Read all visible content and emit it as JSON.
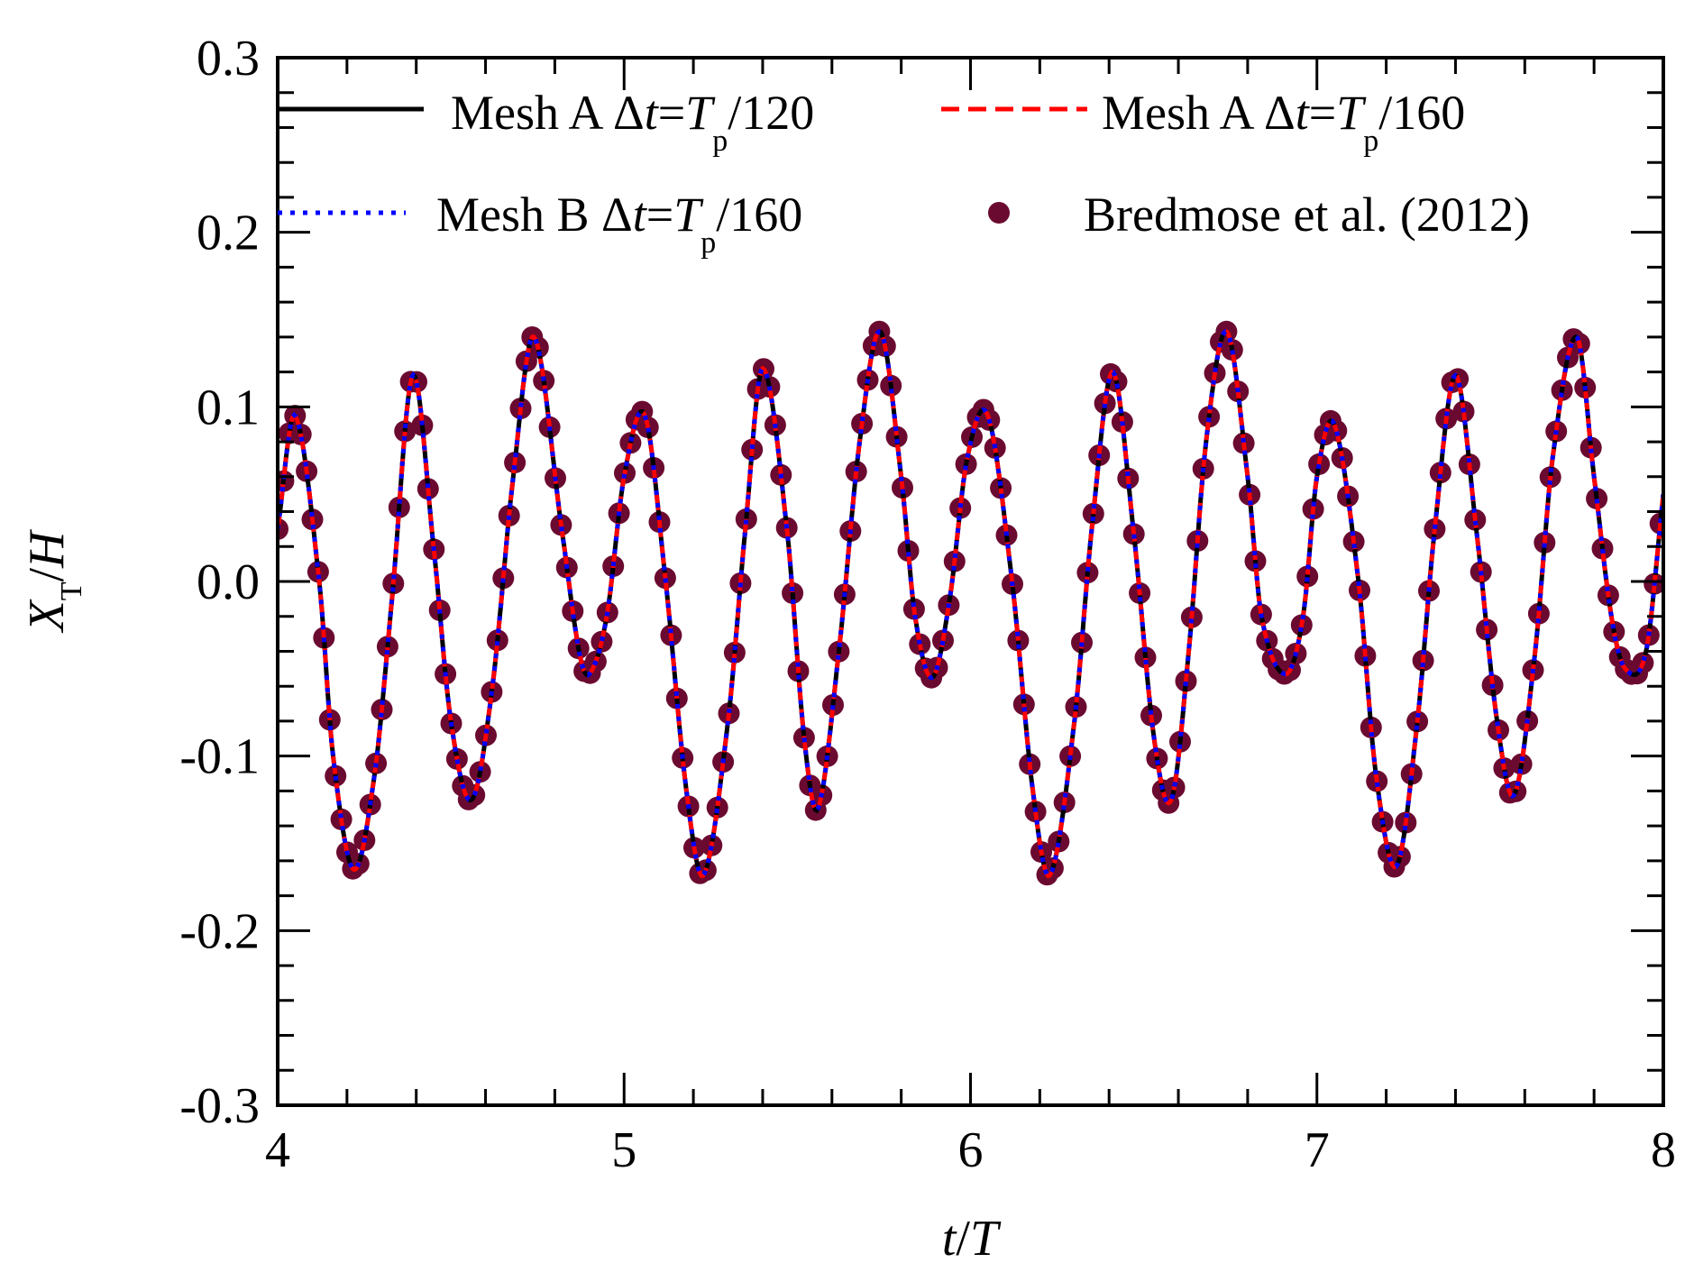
{
  "chart_data": {
    "type": "line",
    "x_label": {
      "pre": "t",
      "slash": "/",
      "post": "T"
    },
    "y_label": {
      "main": "X",
      "sub": "T",
      "slash": "/",
      "post": "H"
    },
    "xlim": [
      4,
      8
    ],
    "ylim": [
      -0.3,
      0.3
    ],
    "x_ticks": [
      4,
      5,
      6,
      7,
      8
    ],
    "x_tick_labels": [
      "4",
      "5",
      "6",
      "7",
      "8"
    ],
    "y_ticks": [
      0.3,
      0.2,
      0.1,
      0.0,
      -0.1,
      -0.2,
      -0.3
    ],
    "y_tick_labels": [
      "0.3",
      "0.2",
      "0.1",
      "0.0",
      "-0.1",
      "-0.2",
      "-0.3"
    ],
    "x_minor_step": 0.2,
    "y_minor_step": 0.02,
    "grid": false,
    "legend_position": "top",
    "series": [
      {
        "name": "Mesh A Δt=Tp/120",
        "label": {
          "pre": "Mesh A Δ",
          "t": "t",
          "eq": "=",
          "T": "T",
          "sub": "p",
          "post": "/120"
        },
        "style": "solid",
        "color": "#000000"
      },
      {
        "name": "Mesh A Δt=Tp/160",
        "label": {
          "pre": "Mesh A Δ",
          "t": "t",
          "eq": "=",
          "T": "T",
          "sub": "p",
          "post": "/160"
        },
        "style": "dashed",
        "color": "#ff0000"
      },
      {
        "name": "Mesh B Δt=Tp/160",
        "label": {
          "pre": "Mesh B Δ",
          "t": "t",
          "eq": "=",
          "T": "T",
          "sub": "p",
          "post": "/160"
        },
        "style": "dotted",
        "color": "#0000ff"
      },
      {
        "name": "Bredmose et al. (2012)",
        "label": {
          "pre": "Bredmose et al. (2012)"
        },
        "style": "markers",
        "color": "#6b0a30"
      }
    ],
    "curve_points": [
      [
        4.0,
        0.03
      ],
      [
        4.05,
        0.095
      ],
      [
        4.12,
        0.0
      ],
      [
        4.16,
        -0.1
      ],
      [
        4.22,
        -0.165
      ],
      [
        4.28,
        -0.11
      ],
      [
        4.33,
        -0.01
      ],
      [
        4.39,
        0.118
      ],
      [
        4.45,
        0.02
      ],
      [
        4.5,
        -0.08
      ],
      [
        4.56,
        -0.125
      ],
      [
        4.62,
        -0.06
      ],
      [
        4.68,
        0.06
      ],
      [
        4.74,
        0.14
      ],
      [
        4.82,
        0.03
      ],
      [
        4.87,
        -0.04
      ],
      [
        4.9,
        -0.053
      ],
      [
        4.95,
        -0.02
      ],
      [
        5.0,
        0.06
      ],
      [
        5.06,
        0.095
      ],
      [
        5.12,
        0.0
      ],
      [
        5.18,
        -0.12
      ],
      [
        5.23,
        -0.168
      ],
      [
        5.3,
        -0.08
      ],
      [
        5.35,
        0.03
      ],
      [
        5.4,
        0.122
      ],
      [
        5.47,
        0.03
      ],
      [
        5.52,
        -0.09
      ],
      [
        5.56,
        -0.13
      ],
      [
        5.62,
        -0.04
      ],
      [
        5.68,
        0.08
      ],
      [
        5.74,
        0.143
      ],
      [
        5.8,
        0.06
      ],
      [
        5.84,
        -0.02
      ],
      [
        5.89,
        -0.055
      ],
      [
        5.94,
        -0.01
      ],
      [
        5.99,
        0.07
      ],
      [
        6.05,
        0.095
      ],
      [
        6.12,
        0.0
      ],
      [
        6.18,
        -0.12
      ],
      [
        6.23,
        -0.168
      ],
      [
        6.3,
        -0.08
      ],
      [
        6.35,
        0.03
      ],
      [
        6.41,
        0.12
      ],
      [
        6.47,
        0.03
      ],
      [
        6.53,
        -0.09
      ],
      [
        6.58,
        -0.125
      ],
      [
        6.63,
        -0.04
      ],
      [
        6.68,
        0.08
      ],
      [
        6.74,
        0.143
      ],
      [
        6.8,
        0.06
      ],
      [
        6.84,
        -0.02
      ],
      [
        6.91,
        -0.053
      ],
      [
        6.96,
        -0.02
      ],
      [
        7.0,
        0.06
      ],
      [
        7.05,
        0.09
      ],
      [
        7.12,
        0.0
      ],
      [
        7.17,
        -0.11
      ],
      [
        7.23,
        -0.163
      ],
      [
        7.29,
        -0.08
      ],
      [
        7.34,
        0.03
      ],
      [
        7.4,
        0.118
      ],
      [
        7.46,
        0.03
      ],
      [
        7.52,
        -0.08
      ],
      [
        7.57,
        -0.122
      ],
      [
        7.63,
        -0.04
      ],
      [
        7.68,
        0.07
      ],
      [
        7.75,
        0.14
      ],
      [
        7.8,
        0.06
      ],
      [
        7.85,
        -0.02
      ],
      [
        7.89,
        -0.05
      ],
      [
        7.95,
        -0.04
      ],
      [
        8.0,
        0.05
      ]
    ],
    "marker_spacing": 0.0167
  }
}
